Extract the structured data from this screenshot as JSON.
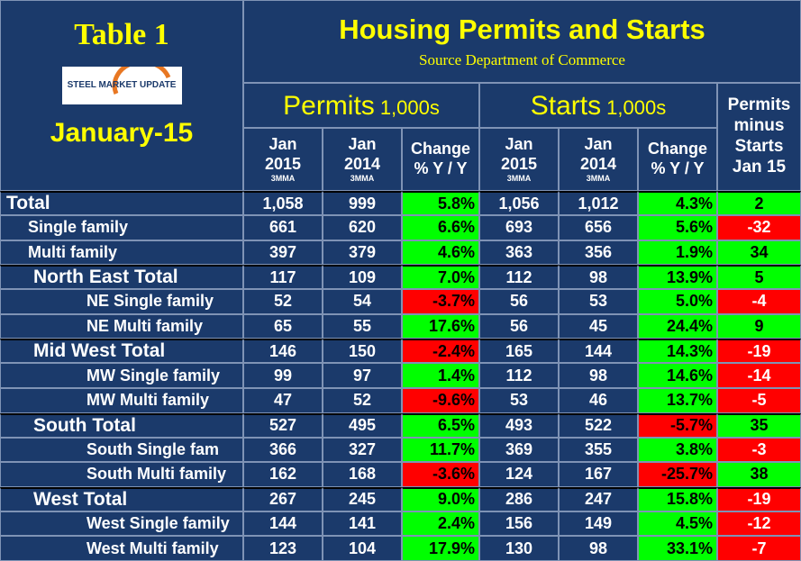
{
  "header": {
    "table_label": "Table 1",
    "logo": "STEEL MARKET UPDATE",
    "period": "January-15",
    "title": "Housing Permits and Starts",
    "source": "Source Department of Commerce"
  },
  "sections": [
    {
      "name": "Permits",
      "unit": "1,000s"
    },
    {
      "name": "Starts",
      "unit": "1,000s"
    }
  ],
  "difference_header": [
    "Permits",
    "minus",
    "Starts",
    "Jan 15"
  ],
  "columns": [
    {
      "lines": [
        "Jan",
        "2015"
      ],
      "note": "3MMA"
    },
    {
      "lines": [
        "Jan",
        "2014"
      ],
      "note": "3MMA"
    },
    {
      "lines": [
        "Change",
        "% Y / Y"
      ]
    },
    {
      "lines": [
        "Jan",
        "2015"
      ],
      "note": "3MMA"
    },
    {
      "lines": [
        "Jan",
        "2014"
      ],
      "note": "3MMA"
    },
    {
      "lines": [
        "Change",
        "% Y / Y"
      ]
    }
  ],
  "groups": [
    {
      "label": "Total",
      "values": [
        "1,058",
        "999",
        "5.8%",
        "1,056",
        "1,012",
        "4.3%",
        "2"
      ],
      "rows": [
        {
          "label": "Single family",
          "values": [
            "661",
            "620",
            "6.6%",
            "693",
            "656",
            "5.6%",
            "-32"
          ]
        },
        {
          "label": "Multi family",
          "values": [
            "397",
            "379",
            "4.6%",
            "363",
            "356",
            "1.9%",
            "34"
          ]
        }
      ]
    },
    {
      "label": "North East Total",
      "values": [
        "117",
        "109",
        "7.0%",
        "112",
        "98",
        "13.9%",
        "5"
      ],
      "rows": [
        {
          "label": "NE Single family",
          "values": [
            "52",
            "54",
            "-3.7%",
            "56",
            "53",
            "5.0%",
            "-4"
          ]
        },
        {
          "label": "NE Multi family",
          "values": [
            "65",
            "55",
            "17.6%",
            "56",
            "45",
            "24.4%",
            "9"
          ]
        }
      ]
    },
    {
      "label": "Mid West Total",
      "values": [
        "146",
        "150",
        "-2.4%",
        "165",
        "144",
        "14.3%",
        "-19"
      ],
      "rows": [
        {
          "label": "MW Single family",
          "values": [
            "99",
            "97",
            "1.4%",
            "112",
            "98",
            "14.6%",
            "-14"
          ]
        },
        {
          "label": "MW Multi family",
          "values": [
            "47",
            "52",
            "-9.6%",
            "53",
            "46",
            "13.7%",
            "-5"
          ]
        }
      ]
    },
    {
      "label": "South Total",
      "values": [
        "527",
        "495",
        "6.5%",
        "493",
        "522",
        "-5.7%",
        "35"
      ],
      "rows": [
        {
          "label": "South Single fam",
          "values": [
            "366",
            "327",
            "11.7%",
            "369",
            "355",
            "3.8%",
            "-3"
          ]
        },
        {
          "label": "South Multi family",
          "values": [
            "162",
            "168",
            "-3.6%",
            "124",
            "167",
            "-25.7%",
            "38"
          ]
        }
      ]
    },
    {
      "label": "West Total",
      "values": [
        "267",
        "245",
        "9.0%",
        "286",
        "247",
        "15.8%",
        "-19"
      ],
      "rows": [
        {
          "label": "West Single family",
          "values": [
            "144",
            "141",
            "2.4%",
            "156",
            "149",
            "4.5%",
            "-12"
          ]
        },
        {
          "label": "West Multi family",
          "values": [
            "123",
            "104",
            "17.9%",
            "130",
            "98",
            "33.1%",
            "-7"
          ]
        }
      ]
    }
  ]
}
